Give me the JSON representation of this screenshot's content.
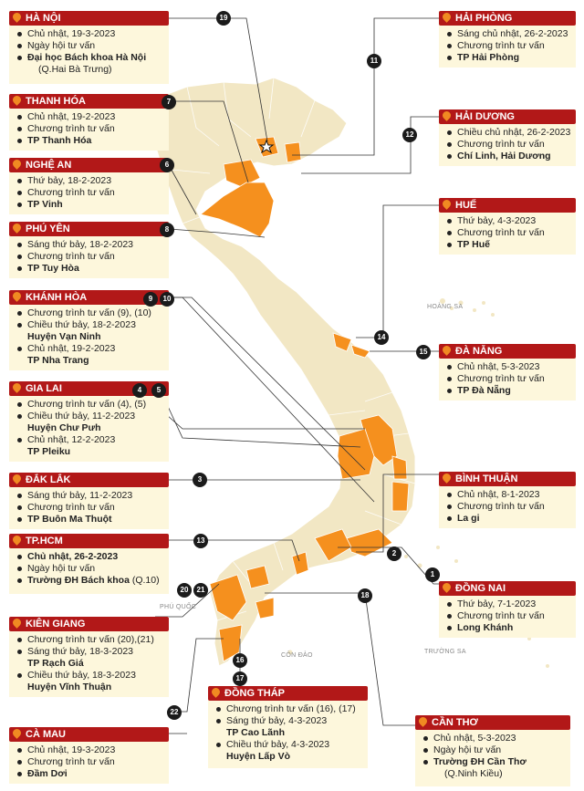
{
  "colors": {
    "accent": "#b21818",
    "highlight": "#f5901e",
    "land": "#f2e7c4",
    "pin": "#f08a22"
  },
  "icons": {
    "pin": "location-pin-icon",
    "capital": "capital-star-icon",
    "badge": "number-badge"
  },
  "map_labels": {
    "hoang_sa": "HOÀNG SA",
    "truong_sa": "TRƯỜNG SA",
    "phu_quoc": "PHÚ QUỐC",
    "con_dao": "CÔN ĐẢO"
  },
  "locations": [
    {
      "name": "HÀ NỘI",
      "lines": [
        "Chủ nhật, 19-3-2023",
        "Ngày hội tư vấn"
      ],
      "bold": [
        "Đại học Bách khoa Hà Nội"
      ],
      "extra": "(Q.Hai Bà Trưng)"
    },
    {
      "name": "THANH HÓA",
      "lines": [
        "Chủ nhật, 19-2-2023",
        "Chương trình tư vấn"
      ],
      "bold": [
        "TP Thanh Hóa"
      ]
    },
    {
      "name": "NGHỆ AN",
      "lines": [
        "Thứ bảy, 18-2-2023",
        "Chương trình tư vấn"
      ],
      "bold": [
        "TP Vinh"
      ]
    },
    {
      "name": "PHÚ YÊN",
      "lines": [
        "Sáng thứ bảy, 18-2-2023",
        "Chương trình tư vấn"
      ],
      "bold": [
        "TP Tuy Hòa"
      ]
    },
    {
      "name": "KHÁNH HÒA",
      "lines": [
        "Chương trình tư vấn (9), (10)",
        "Chiều thứ bảy, 18-2-2023"
      ],
      "bold": [
        "Huyện Vạn Ninh"
      ],
      "lines2": [
        "Chủ nhật, 19-2-2023"
      ],
      "bold2": [
        "TP Nha Trang"
      ]
    },
    {
      "name": "GIA LAI",
      "lines": [
        "Chương trình tư vấn (4), (5)",
        "Chiều thứ bảy, 11-2-2023"
      ],
      "bold": [
        "Huyện Chư Pưh"
      ],
      "lines2": [
        "Chủ nhật, 12-2-2023"
      ],
      "bold2": [
        "TP Pleiku"
      ]
    },
    {
      "name": "ĐẮK LẮK",
      "lines": [
        "Sáng thứ bảy, 11-2-2023",
        "Chương trình tư vấn"
      ],
      "bold": [
        "TP Buôn Ma Thuột"
      ]
    },
    {
      "name": "TP.HCM",
      "lines": [],
      "bold": [
        "Chủ nhật, 26-2-2023"
      ],
      "lines2": [
        "Ngày hội tư vấn"
      ],
      "bold2": [
        "Trường ĐH Bách khoa"
      ],
      "extra": "(Q.10)"
    },
    {
      "name": "KIÊN GIANG",
      "lines": [
        "Chương trình tư vấn (20),(21)",
        "Sáng thứ bảy, 18-3-2023"
      ],
      "bold": [
        "TP Rạch Giá"
      ],
      "lines2": [
        "Chiều thứ bảy, 18-3-2023"
      ],
      "bold2": [
        "Huyện Vĩnh Thuận"
      ]
    },
    {
      "name": "CÀ MAU",
      "lines": [
        "Chủ nhật, 19-3-2023",
        "Chương trình tư vấn"
      ],
      "bold": [
        "Đầm Dơi"
      ]
    },
    {
      "name": "HẢI PHÒNG",
      "lines": [
        "Sáng chủ nhật, 26-2-2023",
        "Chương trình tư vấn"
      ],
      "bold": [
        "TP Hải Phòng"
      ]
    },
    {
      "name": "HẢI DƯƠNG",
      "lines": [
        "Chiều chủ nhật, 26-2-2023",
        "Chương trình tư vấn"
      ],
      "bold": [
        "Chí Linh, Hải Dương"
      ]
    },
    {
      "name": "HUẾ",
      "lines": [
        "Thứ bảy, 4-3-2023",
        "Chương trình tư vấn"
      ],
      "bold": [
        "TP Huế"
      ]
    },
    {
      "name": "ĐÀ NẴNG",
      "lines": [
        "Chủ nhật, 5-3-2023",
        "Chương trình tư vấn"
      ],
      "bold": [
        "TP Đà Nẵng"
      ]
    },
    {
      "name": "BÌNH THUẬN",
      "lines": [
        "Chủ nhật, 8-1-2023",
        "Chương trình tư vấn"
      ],
      "bold": [
        "La gi"
      ]
    },
    {
      "name": "ĐỒNG NAI",
      "lines": [
        "Thứ bảy, 7-1-2023",
        "Chương trình tư vấn"
      ],
      "bold": [
        "Long Khánh"
      ]
    },
    {
      "name": "ĐỒNG THÁP",
      "lines": [
        "Chương trình tư vấn (16), (17)",
        "Sáng thứ bảy, 4-3-2023"
      ],
      "bold": [
        "TP Cao Lãnh"
      ],
      "lines2": [
        "Chiều thứ bảy, 4-3-2023"
      ],
      "bold2": [
        "Huyện Lấp Vò"
      ]
    },
    {
      "name": "CẦN THƠ",
      "lines": [
        "Chủ nhật, 5-3-2023",
        "Ngày hội tư vấn"
      ],
      "bold": [
        "Trường ĐH Cần Thơ"
      ],
      "extra": "(Q.Ninh Kiều)"
    }
  ],
  "badges": [
    "19",
    "7",
    "6",
    "8",
    "9",
    "10",
    "4",
    "5",
    "3",
    "13",
    "20",
    "21",
    "11",
    "12",
    "14",
    "15",
    "2",
    "1",
    "18",
    "16",
    "17",
    "22"
  ]
}
